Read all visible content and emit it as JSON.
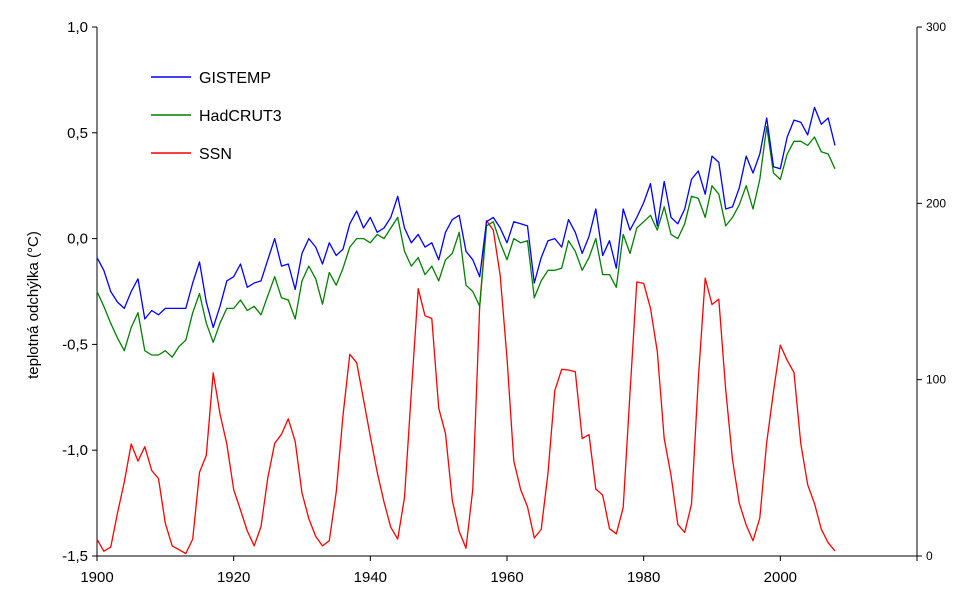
{
  "chart_data": {
    "type": "line",
    "title": "",
    "xlabel": "",
    "ylabel": "teplotná odchýlka (°C)",
    "y2label": "",
    "xlim": [
      1900,
      2020
    ],
    "ylim": [
      -1.5,
      1.0
    ],
    "y2lim": [
      0,
      300
    ],
    "grid": false,
    "legend_position": "top-left",
    "x_ticks": [
      "1900",
      "1920",
      "1940",
      "1960",
      "1980",
      "2000"
    ],
    "y_ticks": [
      "1,0",
      "0,5",
      "0,0",
      "-0,5",
      "-1,0",
      "-1,5"
    ],
    "y2_ticks": [
      "300",
      "200",
      "100",
      "0"
    ],
    "series": [
      {
        "name": "GISTEMP",
        "axis": "left",
        "color": "#0000ff",
        "x": [
          1900,
          1901,
          1902,
          1903,
          1904,
          1905,
          1906,
          1907,
          1908,
          1909,
          1910,
          1911,
          1912,
          1913,
          1914,
          1915,
          1916,
          1917,
          1918,
          1919,
          1920,
          1921,
          1922,
          1923,
          1924,
          1925,
          1926,
          1927,
          1928,
          1929,
          1930,
          1931,
          1932,
          1933,
          1934,
          1935,
          1936,
          1937,
          1938,
          1939,
          1940,
          1941,
          1942,
          1943,
          1944,
          1945,
          1946,
          1947,
          1948,
          1949,
          1950,
          1951,
          1952,
          1953,
          1954,
          1955,
          1956,
          1957,
          1958,
          1959,
          1960,
          1961,
          1962,
          1963,
          1964,
          1965,
          1966,
          1967,
          1968,
          1969,
          1970,
          1971,
          1972,
          1973,
          1974,
          1975,
          1976,
          1977,
          1978,
          1979,
          1980,
          1981,
          1982,
          1983,
          1984,
          1985,
          1986,
          1987,
          1988,
          1989,
          1990,
          1991,
          1992,
          1993,
          1994,
          1995,
          1996,
          1997,
          1998,
          1999,
          2000,
          2001,
          2002,
          2003,
          2004,
          2005,
          2006,
          2007,
          2008
        ],
        "values": [
          -0.09,
          -0.15,
          -0.25,
          -0.3,
          -0.33,
          -0.25,
          -0.19,
          -0.38,
          -0.34,
          -0.36,
          -0.33,
          -0.33,
          -0.33,
          -0.33,
          -0.21,
          -0.11,
          -0.3,
          -0.42,
          -0.32,
          -0.2,
          -0.18,
          -0.12,
          -0.23,
          -0.21,
          -0.2,
          -0.1,
          0.0,
          -0.13,
          -0.12,
          -0.24,
          -0.07,
          0.0,
          -0.04,
          -0.12,
          -0.02,
          -0.08,
          -0.05,
          0.07,
          0.13,
          0.05,
          0.1,
          0.03,
          0.05,
          0.1,
          0.2,
          0.05,
          -0.02,
          0.02,
          -0.04,
          -0.02,
          -0.1,
          0.03,
          0.09,
          0.11,
          -0.06,
          -0.1,
          -0.18,
          0.08,
          0.1,
          0.05,
          -0.02,
          0.08,
          0.07,
          0.06,
          -0.21,
          -0.09,
          -0.01,
          0.0,
          -0.04,
          0.09,
          0.03,
          -0.07,
          0.01,
          0.14,
          -0.08,
          -0.01,
          -0.14,
          0.14,
          0.04,
          0.1,
          0.17,
          0.26,
          0.06,
          0.27,
          0.1,
          0.07,
          0.14,
          0.28,
          0.32,
          0.21,
          0.39,
          0.36,
          0.14,
          0.15,
          0.24,
          0.39,
          0.31,
          0.4,
          0.57,
          0.34,
          0.33,
          0.48,
          0.56,
          0.55,
          0.49,
          0.62,
          0.54,
          0.57,
          0.44
        ]
      },
      {
        "name": "HadCRUT3",
        "axis": "left",
        "color": "#008000",
        "x": [
          1900,
          1901,
          1902,
          1903,
          1904,
          1905,
          1906,
          1907,
          1908,
          1909,
          1910,
          1911,
          1912,
          1913,
          1914,
          1915,
          1916,
          1917,
          1918,
          1919,
          1920,
          1921,
          1922,
          1923,
          1924,
          1925,
          1926,
          1927,
          1928,
          1929,
          1930,
          1931,
          1932,
          1933,
          1934,
          1935,
          1936,
          1937,
          1938,
          1939,
          1940,
          1941,
          1942,
          1943,
          1944,
          1945,
          1946,
          1947,
          1948,
          1949,
          1950,
          1951,
          1952,
          1953,
          1954,
          1955,
          1956,
          1957,
          1958,
          1959,
          1960,
          1961,
          1962,
          1963,
          1964,
          1965,
          1966,
          1967,
          1968,
          1969,
          1970,
          1971,
          1972,
          1973,
          1974,
          1975,
          1976,
          1977,
          1978,
          1979,
          1980,
          1981,
          1982,
          1983,
          1984,
          1985,
          1986,
          1987,
          1988,
          1989,
          1990,
          1991,
          1992,
          1993,
          1994,
          1995,
          1996,
          1997,
          1998,
          1999,
          2000,
          2001,
          2002,
          2003,
          2004,
          2005,
          2006,
          2007,
          2008
        ],
        "values": [
          -0.25,
          -0.32,
          -0.4,
          -0.47,
          -0.53,
          -0.42,
          -0.35,
          -0.53,
          -0.55,
          -0.55,
          -0.53,
          -0.56,
          -0.51,
          -0.48,
          -0.35,
          -0.26,
          -0.4,
          -0.49,
          -0.4,
          -0.33,
          -0.33,
          -0.29,
          -0.34,
          -0.32,
          -0.36,
          -0.27,
          -0.18,
          -0.28,
          -0.29,
          -0.38,
          -0.2,
          -0.13,
          -0.19,
          -0.31,
          -0.16,
          -0.22,
          -0.14,
          -0.04,
          0.0,
          0.0,
          -0.02,
          0.02,
          0.0,
          0.05,
          0.1,
          -0.06,
          -0.13,
          -0.09,
          -0.17,
          -0.13,
          -0.2,
          -0.1,
          -0.07,
          0.03,
          -0.22,
          -0.25,
          -0.32,
          0.06,
          0.08,
          -0.02,
          -0.1,
          0.0,
          -0.02,
          -0.01,
          -0.28,
          -0.2,
          -0.15,
          -0.15,
          -0.14,
          -0.01,
          -0.06,
          -0.15,
          -0.09,
          0.0,
          -0.17,
          -0.17,
          -0.23,
          0.02,
          -0.07,
          0.05,
          0.08,
          0.11,
          0.04,
          0.15,
          0.02,
          0.0,
          0.07,
          0.2,
          0.19,
          0.1,
          0.25,
          0.21,
          0.06,
          0.1,
          0.16,
          0.25,
          0.14,
          0.28,
          0.53,
          0.31,
          0.28,
          0.4,
          0.46,
          0.46,
          0.44,
          0.48,
          0.41,
          0.4,
          0.33
        ]
      },
      {
        "name": "SSN",
        "axis": "right",
        "color": "#ff0000",
        "x": [
          1900,
          1901,
          1902,
          1903,
          1904,
          1905,
          1906,
          1907,
          1908,
          1909,
          1910,
          1911,
          1912,
          1913,
          1914,
          1915,
          1916,
          1917,
          1918,
          1919,
          1920,
          1921,
          1922,
          1923,
          1924,
          1925,
          1926,
          1927,
          1928,
          1929,
          1930,
          1931,
          1932,
          1933,
          1934,
          1935,
          1936,
          1937,
          1938,
          1939,
          1940,
          1941,
          1942,
          1943,
          1944,
          1945,
          1946,
          1947,
          1948,
          1949,
          1950,
          1951,
          1952,
          1953,
          1954,
          1955,
          1956,
          1957,
          1958,
          1959,
          1960,
          1961,
          1962,
          1963,
          1964,
          1965,
          1966,
          1967,
          1968,
          1969,
          1970,
          1971,
          1972,
          1973,
          1974,
          1975,
          1976,
          1977,
          1978,
          1979,
          1980,
          1981,
          1982,
          1983,
          1984,
          1985,
          1986,
          1987,
          1988,
          1989,
          1990,
          1991,
          1992,
          1993,
          1994,
          1995,
          1996,
          1997,
          1998,
          1999,
          2000,
          2001,
          2002,
          2003,
          2004,
          2005,
          2006,
          2007,
          2008
        ],
        "values": [
          9.5,
          2.7,
          5.0,
          24.4,
          42.0,
          63.5,
          53.8,
          62.0,
          48.5,
          43.9,
          18.6,
          5.7,
          3.6,
          1.4,
          9.6,
          47.4,
          57.1,
          103.9,
          80.6,
          63.6,
          37.6,
          26.1,
          14.2,
          5.8,
          16.7,
          44.3,
          63.9,
          69.0,
          77.8,
          64.9,
          35.7,
          21.2,
          11.1,
          5.7,
          8.7,
          36.1,
          79.7,
          114.4,
          109.6,
          88.8,
          67.8,
          47.5,
          30.6,
          16.3,
          9.6,
          33.2,
          92.6,
          151.6,
          136.3,
          134.7,
          83.9,
          69.4,
          31.5,
          13.9,
          4.4,
          38.0,
          141.7,
          190.2,
          184.8,
          159.0,
          112.3,
          53.9,
          37.6,
          27.9,
          10.2,
          15.1,
          47.0,
          93.8,
          105.9,
          105.5,
          104.5,
          66.6,
          68.9,
          38.0,
          34.5,
          15.5,
          12.6,
          27.5,
          92.5,
          155.4,
          154.6,
          140.5,
          115.9,
          66.6,
          45.9,
          17.9,
          13.4,
          29.4,
          100.2,
          157.6,
          142.6,
          145.7,
          94.3,
          54.6,
          29.9,
          17.5,
          8.6,
          21.5,
          64.3,
          93.3,
          119.6,
          111.0,
          104.0,
          63.7,
          40.4,
          29.8,
          15.2,
          7.5,
          2.9
        ]
      }
    ]
  }
}
